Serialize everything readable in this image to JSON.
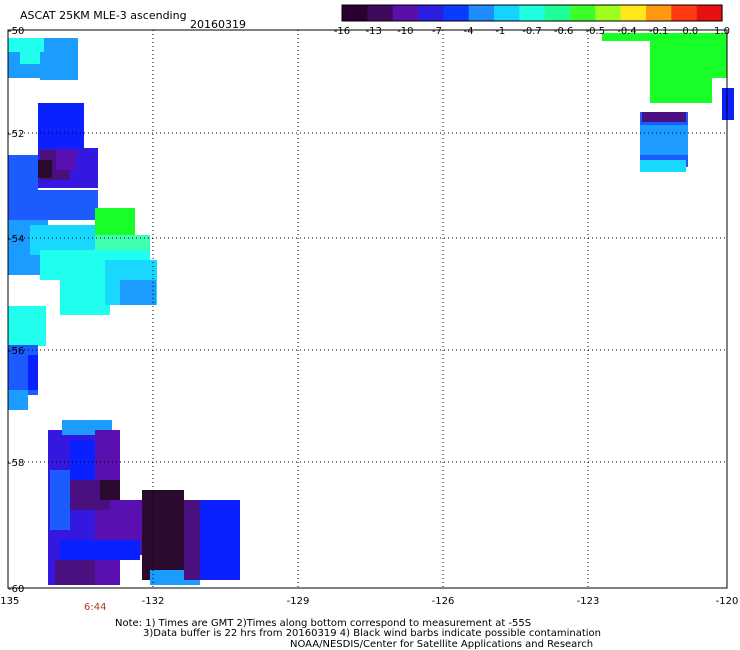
{
  "header": {
    "title": "ASCAT 25KM MLE-3 ascending",
    "date": "20160319"
  },
  "colorbar": {
    "labels": [
      "-16",
      "-13",
      "-10",
      "-7",
      "-4",
      "-1",
      "-0.7",
      "-0.6",
      "-0.5",
      "-0.4",
      "-0.1",
      "0.0",
      "1.0"
    ],
    "colors": [
      "#2a0030",
      "#3d0a5e",
      "#5a10a8",
      "#2b1ee0",
      "#0a3cff",
      "#1c8cff",
      "#14d4ff",
      "#1effe0",
      "#1eff9a",
      "#3cff2a",
      "#9eff1e",
      "#ffe81a",
      "#ff9a10",
      "#ff3a10",
      "#e81010"
    ]
  },
  "axes": {
    "lon_ticks": [
      "-135",
      "-132",
      "-129",
      "-126",
      "-123",
      "-120"
    ],
    "lat_ticks": [
      "-50",
      "-52",
      "-54",
      "-56",
      "-58",
      "-60"
    ]
  },
  "time_label": "6:44",
  "notes": [
    "Note: 1) Times are GMT 2)Times along bottom correspond to measurement at -55S",
    "3)Data buffer is 22 hrs from 20160319 4) Black wind barbs indicate possible contamination",
    "NOAA/NESDIS/Center for Satellite Applications and Research"
  ],
  "palette": {
    "black_purple": "#2a0a2e",
    "dark_purple": "#4b1080",
    "purple": "#5a10b0",
    "indigo": "#3418e0",
    "blue": "#0a20ff",
    "mid_blue": "#1c5cff",
    "light_blue": "#1c9cff",
    "cyan": "#18d8ff",
    "aqua": "#20ffee",
    "teal_green": "#40ffb0",
    "green": "#18ff28"
  }
}
